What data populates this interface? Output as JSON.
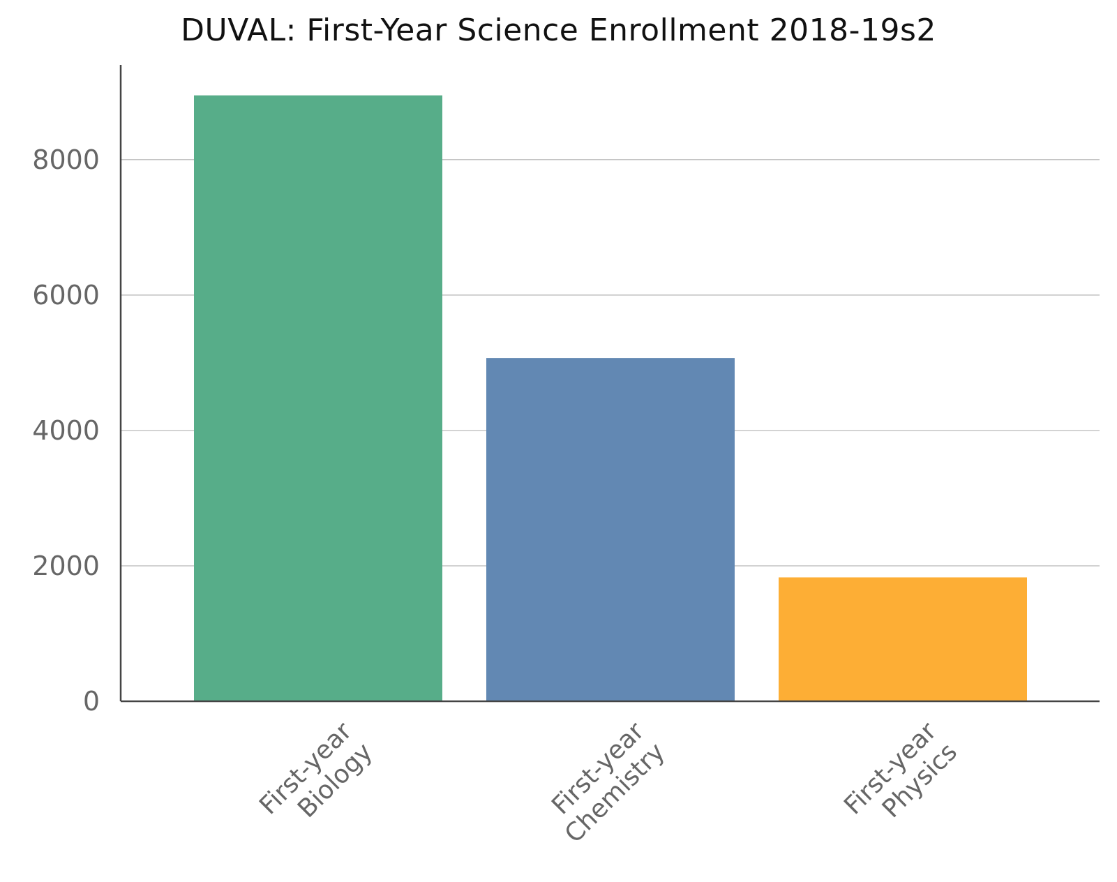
{
  "chart_data": {
    "type": "bar",
    "title": "DUVAL: First-Year Science Enrollment 2018-19s2",
    "categories": [
      [
        "First-year",
        "Biology"
      ],
      [
        "First-year",
        "Chemistry"
      ],
      [
        "First-year",
        "Physics"
      ]
    ],
    "values": [
      8950,
      5070,
      1830
    ],
    "colors": [
      "#57ad89",
      "#6288b3",
      "#fdae35"
    ],
    "yticks": [
      0,
      2000,
      4000,
      6000,
      8000
    ],
    "ylim": [
      0,
      9400
    ],
    "grid": true
  }
}
